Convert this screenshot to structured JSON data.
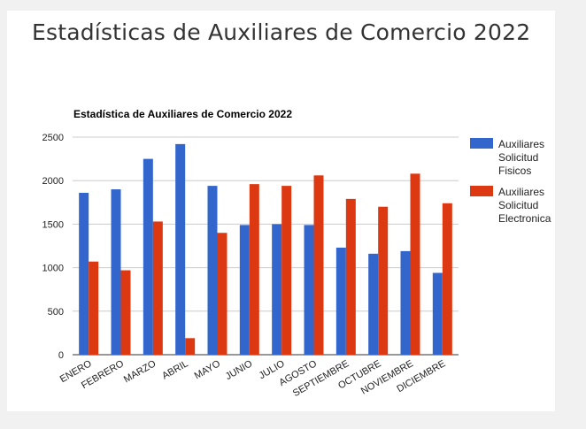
{
  "page": {
    "title": "Estadísticas de Auxiliares de Comercio 2022"
  },
  "chart_data": {
    "type": "bar",
    "title": "Estadística de Auxiliares de Comercio 2022",
    "xlabel": "",
    "ylabel": "",
    "ylim": [
      0,
      2500
    ],
    "yticks": [
      "0",
      "500",
      "1000",
      "1500",
      "2000",
      "2500"
    ],
    "grid": true,
    "legend_position": "right",
    "categories": [
      "ENERO",
      "FEBRERO",
      "MARZO",
      "ABRIL",
      "MAYO",
      "JUNIO",
      "JULIO",
      "AGOSTO",
      "SEPTIEMBRE",
      "OCTUBRE",
      "NOVIEMBRE",
      "DICIEMBRE"
    ],
    "series": [
      {
        "name": "Auxiliares Solicitud Fisicos",
        "legend_lines": [
          "Auxiliares",
          "Solicitud",
          "Fisicos"
        ],
        "color": "#3366cc",
        "values": [
          1860,
          1900,
          2250,
          2420,
          1940,
          1490,
          1500,
          1490,
          1230,
          1160,
          1190,
          940
        ]
      },
      {
        "name": "Auxiliares Solicitud Electronica",
        "legend_lines": [
          "Auxiliares",
          "Solicitud",
          "Electronica"
        ],
        "color": "#dc3912",
        "values": [
          1070,
          970,
          1530,
          190,
          1400,
          1960,
          1940,
          2060,
          1790,
          1700,
          2080,
          1740
        ]
      }
    ]
  }
}
